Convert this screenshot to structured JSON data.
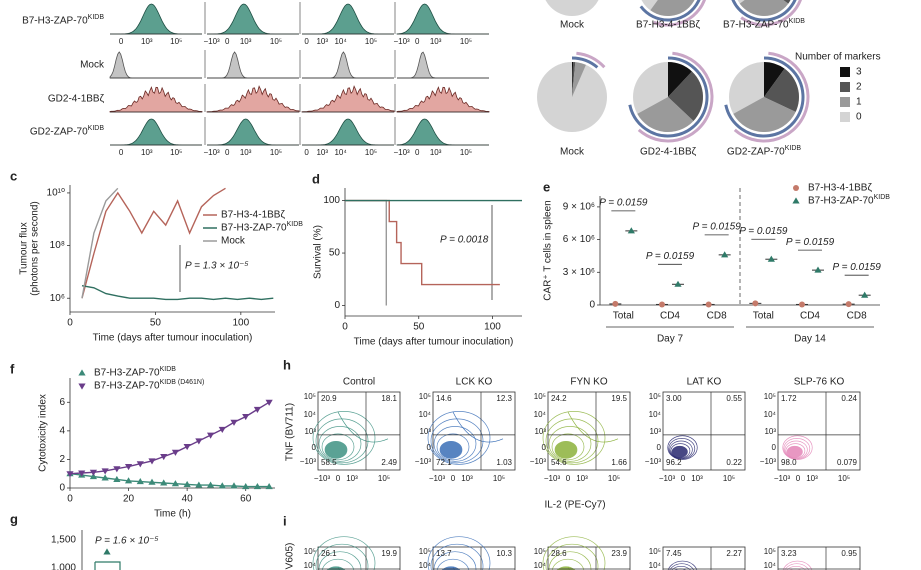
{
  "panels": {
    "a": {
      "rows": [
        "B7-H3-ZAP-70KIDB",
        "Mock",
        "GD2-4-1BBζ",
        "GD2-ZAP-70KIDB"
      ],
      "xticks": [
        [
          "0",
          "10³",
          "10⁵"
        ],
        [
          "−10³",
          "0",
          "10³",
          "10⁵"
        ],
        [
          "0",
          "10³",
          "10⁴",
          "10⁵"
        ],
        [
          "−10³",
          "0",
          "10³",
          "10⁵"
        ]
      ]
    },
    "b": {
      "row1": [
        "Mock",
        "B7-H3-4-1BBζ",
        "B7-H3-ZAP-70KIDB"
      ],
      "row2": [
        "Mock",
        "GD2-4-1BBζ",
        "GD2-ZAP-70KIDB"
      ],
      "legend_title": "Number of markers",
      "legend": [
        "3",
        "2",
        "1",
        "0"
      ]
    },
    "g": {
      "letter": "g",
      "yticks": [
        "1,500",
        "1,000"
      ],
      "annotation": "P = 1.6 × 10⁻⁵"
    },
    "h": {
      "letter": "h",
      "titles": [
        "Control",
        "LCK KO",
        "FYN KO",
        "LAT KO",
        "SLP-76 KO"
      ],
      "quadrants": [
        [
          "20.9",
          "18.1",
          "58.5",
          "2.49"
        ],
        [
          "14.6",
          "12.3",
          "72.1",
          "1.03"
        ],
        [
          "24.2",
          "19.5",
          "54.6",
          "1.66"
        ],
        [
          "3.00",
          "0.55",
          "96.2",
          "0.22"
        ],
        [
          "1.72",
          "0.24",
          "98.0",
          "0.079"
        ]
      ],
      "yticks": [
        "10⁵",
        "10⁴",
        "10³",
        "0",
        "−10³"
      ],
      "xticks": [
        "−10³",
        "0",
        "10³",
        "10⁵"
      ],
      "ylabel": "TNF (BV711)",
      "xlabel": "IL-2 (PE-Cy7)"
    },
    "i": {
      "letter": "i",
      "quadrants": [
        [
          "26.1",
          "19.9"
        ],
        [
          "13.7",
          "10.3"
        ],
        [
          "28.6",
          "23.9"
        ],
        [
          "7.45",
          "2.27"
        ],
        [
          "3.23",
          "0.95"
        ]
      ],
      "yticks": [
        "10⁵",
        "10⁴"
      ],
      "ylabel": "V605)"
    }
  },
  "chart_data": [
    {
      "type": "line",
      "letter": "c",
      "ylabel": [
        "Tumour flux",
        "(photons per second)"
      ],
      "xlabel": "Time (days after tumour inoculation)",
      "log_y": true,
      "xlim": [
        0,
        120
      ],
      "xticks": [
        0,
        50,
        100
      ],
      "ylim": [
        300000,
        20000000000
      ],
      "yticks": [
        {
          "value": 1000000,
          "label": "10⁶"
        },
        {
          "value": 100000000,
          "label": "10⁸"
        },
        {
          "value": 10000000000,
          "label": "10¹⁰"
        }
      ],
      "x": [
        7,
        14,
        21,
        28,
        35,
        42,
        49,
        56,
        63,
        70,
        77,
        84,
        91,
        98,
        105,
        112,
        119
      ],
      "series": [
        {
          "name": "B7-H3-4-1BBζ",
          "color": "#b5645a",
          "values": [
            1000000,
            50000000,
            2000000000,
            10000000000,
            2000000000,
            300000000,
            2000000000,
            600000000,
            5000000000,
            300000000,
            3000000000,
            8000000000,
            15000000000,
            null,
            null,
            null,
            null
          ]
        },
        {
          "name": "B7-H3-ZAP-70KIDB",
          "color": "#2f6f60",
          "values": [
            3000000,
            2500000,
            1500000,
            1200000,
            1000000,
            1000000,
            1000000,
            900000,
            900000,
            1000000,
            1000000,
            900000,
            1000000,
            900000,
            1000000,
            900000,
            1000000
          ]
        },
        {
          "name": "Mock",
          "color": "#9a9a9a",
          "values": [
            1000000,
            300000000,
            5000000000,
            15000000000,
            null,
            null,
            null,
            null,
            null,
            null,
            null,
            null,
            null,
            null,
            null,
            null,
            null
          ]
        }
      ],
      "legend": "upper right",
      "annotation": "P = 1.3 × 10⁻⁵"
    },
    {
      "type": "step",
      "letter": "d",
      "ylabel": "Survival (%)",
      "xlabel": "Time (days after tumour inoculation)",
      "xlim": [
        0,
        120
      ],
      "xticks": [
        0,
        50,
        100
      ],
      "ylim": [
        -10,
        112
      ],
      "yticks": [
        0,
        50,
        100
      ],
      "x": [
        0,
        28,
        30,
        35,
        38,
        52,
        105,
        120
      ],
      "series": [
        {
          "color": "#9a9a9a",
          "values": [
            100,
            0,
            null,
            null,
            null,
            null,
            null,
            null
          ]
        },
        {
          "color": "#b5645a",
          "values": [
            100,
            100,
            80,
            60,
            40,
            20,
            20,
            null
          ]
        },
        {
          "color": "#2f6f60",
          "values": [
            100,
            100,
            100,
            100,
            100,
            100,
            100,
            100
          ]
        }
      ],
      "annotation": "P = 0.0018"
    },
    {
      "type": "dot",
      "letter": "e",
      "ylabel": "CAR⁺ T cells in spleen",
      "categories": [
        "Total",
        "CD4",
        "CD8",
        "Total",
        "CD4",
        "CD8"
      ],
      "groups": [
        "Day 7",
        "Day 14"
      ],
      "ylim": [
        0,
        10000000
      ],
      "yticks": [
        0,
        {
          "value": 3000000,
          "label": "3 × 10⁶"
        },
        {
          "value": 6000000,
          "label": "6 × 10⁶"
        },
        {
          "value": 9000000,
          "label": "9 × 10⁶"
        }
      ],
      "series": [
        {
          "name": "B7-H3-4-1BBζ",
          "color": "#c47a6a",
          "marker": "circle",
          "values": [
            100000,
            50000,
            50000,
            150000,
            50000,
            80000
          ]
        },
        {
          "name": "B7-H3-ZAP-70KIDB",
          "color": "#2f7a68",
          "marker": "triangle-up",
          "values": [
            6800000,
            1900000,
            4600000,
            4200000,
            3200000,
            900000
          ]
        }
      ],
      "p_labels": [
        "P = 0.0159",
        "P = 0.0159",
        "P = 0.0159",
        "P = 0.0159",
        "P = 0.0159",
        "P = 0.0159"
      ],
      "legend": "upper right"
    },
    {
      "type": "line",
      "letter": "f",
      "ylabel": [
        "Cytotoxicity index"
      ],
      "xlabel": "Time (h)",
      "xlim": [
        0,
        70
      ],
      "xticks": [
        0,
        20,
        40,
        60
      ],
      "ylim": [
        0,
        7.7
      ],
      "yticks": [
        0,
        2,
        4,
        6
      ],
      "x": [
        0,
        4,
        8,
        12,
        16,
        20,
        24,
        28,
        32,
        36,
        40,
        44,
        48,
        52,
        56,
        60,
        64,
        68
      ],
      "series": [
        {
          "name": "B7-H3-ZAP-70KIDB",
          "color": "#3c8a78",
          "marker": "triangle-up",
          "values": [
            1,
            0.9,
            0.8,
            0.7,
            0.6,
            0.5,
            0.45,
            0.4,
            0.35,
            0.3,
            0.25,
            0.2,
            0.2,
            0.15,
            0.15,
            0.1,
            0.1,
            0.1
          ]
        },
        {
          "name": "B7-H3-ZAP-70KIDB (D461N)",
          "color": "#6a3d8a",
          "marker": "triangle-down",
          "values": [
            1,
            1.05,
            1.1,
            1.2,
            1.35,
            1.5,
            1.7,
            1.9,
            2.2,
            2.5,
            2.9,
            3.3,
            3.7,
            4.1,
            4.6,
            5,
            5.5,
            6
          ]
        }
      ],
      "legend": "upper left"
    }
  ]
}
